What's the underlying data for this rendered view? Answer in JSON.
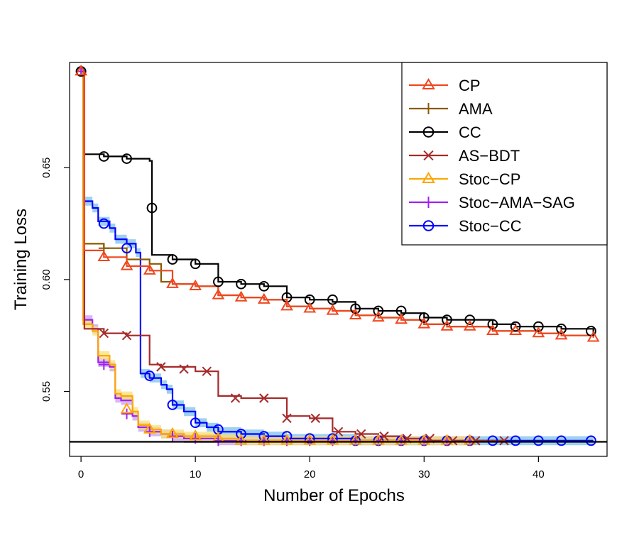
{
  "chart_data": {
    "type": "line",
    "title": "",
    "xlabel": "Number of Epochs",
    "ylabel": "Training Loss",
    "xlim": [
      -1,
      46
    ],
    "ylim": [
      0.521,
      0.697
    ],
    "xticks": [
      0,
      10,
      20,
      30,
      40
    ],
    "yticks": [
      0.55,
      0.6,
      0.65
    ],
    "ytick_labels": [
      "0.55",
      "0.60",
      "0.65"
    ],
    "legend_position": "top-right",
    "reference_line": {
      "y": 0.5275,
      "color": "#000000"
    },
    "series": [
      {
        "name": "CP",
        "color": "#f0461e",
        "marker": "triangle",
        "x": [
          0,
          0.3,
          2,
          4,
          6,
          8,
          10,
          12,
          14,
          16,
          18,
          20,
          22,
          24,
          26,
          28,
          30,
          32,
          34,
          36,
          38,
          40,
          42,
          44.8
        ],
        "y": [
          0.693,
          0.613,
          0.61,
          0.606,
          0.604,
          0.598,
          0.597,
          0.593,
          0.592,
          0.591,
          0.588,
          0.587,
          0.586,
          0.584,
          0.583,
          0.582,
          0.58,
          0.579,
          0.579,
          0.577,
          0.577,
          0.576,
          0.575,
          0.574
        ],
        "marker_x": [
          0,
          2,
          4,
          6,
          8,
          10,
          12,
          14,
          16,
          18,
          20,
          22,
          24,
          26,
          28,
          30,
          32,
          34,
          36,
          38,
          40,
          42,
          44.8
        ]
      },
      {
        "name": "AMA",
        "color": "#8b5a00",
        "marker": "plus",
        "x": [
          0,
          0.3,
          2,
          4,
          6,
          7,
          8,
          10,
          12,
          14,
          16,
          18,
          20,
          22,
          24,
          26,
          28,
          30,
          32,
          34,
          36,
          38,
          40,
          42,
          44.8
        ],
        "y": [
          0.693,
          0.616,
          0.614,
          0.609,
          0.607,
          0.599,
          0.598,
          0.597,
          0.593,
          0.592,
          0.591,
          0.588,
          0.587,
          0.586,
          0.584,
          0.583,
          0.582,
          0.58,
          0.579,
          0.579,
          0.577,
          0.577,
          0.576,
          0.575,
          0.575
        ],
        "marker_x": [
          2
        ]
      },
      {
        "name": "CC",
        "color": "#000000",
        "marker": "circle",
        "x": [
          0,
          0.3,
          2,
          4,
          6,
          6.2,
          8,
          10,
          12,
          14,
          16,
          18,
          20,
          22,
          24,
          26,
          28,
          30,
          32,
          34,
          36,
          38,
          40,
          42,
          44.8
        ],
        "y": [
          0.693,
          0.656,
          0.655,
          0.654,
          0.653,
          0.611,
          0.609,
          0.607,
          0.599,
          0.598,
          0.597,
          0.592,
          0.591,
          0.59,
          0.587,
          0.586,
          0.585,
          0.583,
          0.582,
          0.582,
          0.58,
          0.579,
          0.579,
          0.578,
          0.576
        ],
        "marker_x": [
          0,
          2,
          4,
          6.2,
          8,
          10,
          12,
          14,
          16,
          18,
          20,
          22,
          24,
          26,
          28,
          30,
          32,
          34,
          36,
          38,
          40,
          42,
          44.6
        ],
        "marker_y": [
          0.693,
          0.655,
          0.654,
          0.632,
          0.609,
          0.607,
          0.599,
          0.598,
          0.597,
          0.592,
          0.591,
          0.591,
          0.587,
          0.586,
          0.586,
          0.583,
          0.582,
          0.582,
          0.58,
          0.579,
          0.579,
          0.578,
          0.577
        ]
      },
      {
        "name": "AS−BDT",
        "color": "#a52a2a",
        "marker": "x",
        "x": [
          0,
          0.3,
          2,
          4,
          5,
          6,
          7,
          10,
          12,
          14,
          16,
          18,
          20,
          22,
          24,
          26,
          28,
          30,
          32,
          34,
          36,
          37
        ],
        "y": [
          0.693,
          0.578,
          0.576,
          0.575,
          0.575,
          0.562,
          0.561,
          0.559,
          0.548,
          0.547,
          0.547,
          0.539,
          0.538,
          0.532,
          0.531,
          0.53,
          0.529,
          0.528,
          0.528,
          0.528,
          0.528,
          0.528
        ],
        "marker_x": [
          2,
          4,
          7,
          9,
          11,
          13.5,
          16,
          18,
          20.5,
          22.5,
          24.5,
          26.5,
          28.5,
          30.5,
          32.5,
          34.5,
          37
        ],
        "marker_y": [
          0.576,
          0.575,
          0.561,
          0.56,
          0.559,
          0.547,
          0.547,
          0.538,
          0.538,
          0.532,
          0.531,
          0.53,
          0.529,
          0.529,
          0.528,
          0.528,
          0.528
        ]
      },
      {
        "name": "Stoc−CP",
        "color": "#ffa500",
        "marker": "triangle",
        "band_color": "#f6e27a",
        "x": [
          0,
          0.2,
          1,
          1.5,
          2.5,
          3,
          3.5,
          4.5,
          5,
          6,
          7,
          8,
          9,
          10,
          12,
          14,
          16,
          18,
          20,
          22,
          24,
          26,
          28,
          30,
          32,
          34
        ],
        "y": [
          0.693,
          0.58,
          0.577,
          0.566,
          0.562,
          0.549,
          0.548,
          0.541,
          0.535,
          0.533,
          0.531,
          0.531,
          0.53,
          0.53,
          0.529,
          0.528,
          0.528,
          0.528,
          0.528,
          0.528,
          0.528,
          0.528,
          0.528,
          0.528,
          0.528,
          0.528
        ],
        "marker_x": [
          0,
          4,
          6,
          8,
          10,
          12,
          14,
          16,
          18,
          20,
          22,
          24,
          26,
          28,
          30,
          32,
          34
        ],
        "marker_y": [
          0.693,
          0.542,
          0.533,
          0.531,
          0.53,
          0.529,
          0.528,
          0.528,
          0.528,
          0.528,
          0.528,
          0.528,
          0.528,
          0.528,
          0.528,
          0.528,
          0.528
        ]
      },
      {
        "name": "Stoc−AMA−SAG",
        "color": "#a020f0",
        "marker": "plus",
        "band_color": "#c8a0f0",
        "x": [
          0,
          0.2,
          1,
          1.5,
          2.5,
          3,
          3.5,
          4.5,
          5,
          6,
          7,
          8,
          9,
          10,
          12,
          14,
          16,
          18,
          20,
          22,
          24,
          26,
          28,
          30,
          32,
          34
        ],
        "y": [
          0.693,
          0.582,
          0.578,
          0.563,
          0.561,
          0.547,
          0.546,
          0.539,
          0.534,
          0.532,
          0.531,
          0.53,
          0.529,
          0.529,
          0.528,
          0.528,
          0.528,
          0.528,
          0.528,
          0.528,
          0.528,
          0.528,
          0.528,
          0.528,
          0.528,
          0.528
        ],
        "marker_x": [
          0,
          2,
          4,
          6,
          8,
          10,
          12,
          14,
          16,
          18,
          20,
          22,
          24,
          26,
          28,
          30,
          32,
          34
        ],
        "marker_y": [
          0.693,
          0.562,
          0.54,
          0.532,
          0.53,
          0.529,
          0.528,
          0.528,
          0.528,
          0.528,
          0.528,
          0.528,
          0.528,
          0.528,
          0.528,
          0.528,
          0.528,
          0.528
        ]
      },
      {
        "name": "Stoc−CC",
        "color": "#0000ff",
        "marker": "circle",
        "band_color": "#7ec0ee",
        "x": [
          0,
          0.2,
          1,
          1.5,
          2.5,
          3,
          4,
          4.8,
          5.2,
          6,
          7,
          7.5,
          8,
          9,
          10,
          11,
          12,
          14,
          16,
          18,
          20,
          22,
          24,
          26,
          28,
          30,
          32,
          34,
          36,
          38,
          40,
          42,
          44.8
        ],
        "y": [
          0.693,
          0.635,
          0.632,
          0.626,
          0.623,
          0.618,
          0.616,
          0.612,
          0.558,
          0.556,
          0.553,
          0.551,
          0.544,
          0.541,
          0.536,
          0.534,
          0.532,
          0.531,
          0.53,
          0.529,
          0.529,
          0.529,
          0.528,
          0.528,
          0.528,
          0.528,
          0.528,
          0.528,
          0.528,
          0.528,
          0.528,
          0.528,
          0.528
        ],
        "marker_x": [
          0,
          2,
          4,
          6,
          8,
          10,
          12,
          14,
          16,
          18,
          20,
          22,
          24,
          26,
          28,
          30,
          32,
          34,
          36,
          38,
          40,
          42,
          44.6
        ],
        "marker_y": [
          0.693,
          0.625,
          0.614,
          0.557,
          0.544,
          0.536,
          0.533,
          0.531,
          0.53,
          0.53,
          0.529,
          0.529,
          0.528,
          0.528,
          0.528,
          0.528,
          0.528,
          0.528,
          0.528,
          0.528,
          0.528,
          0.528,
          0.528
        ]
      }
    ]
  }
}
